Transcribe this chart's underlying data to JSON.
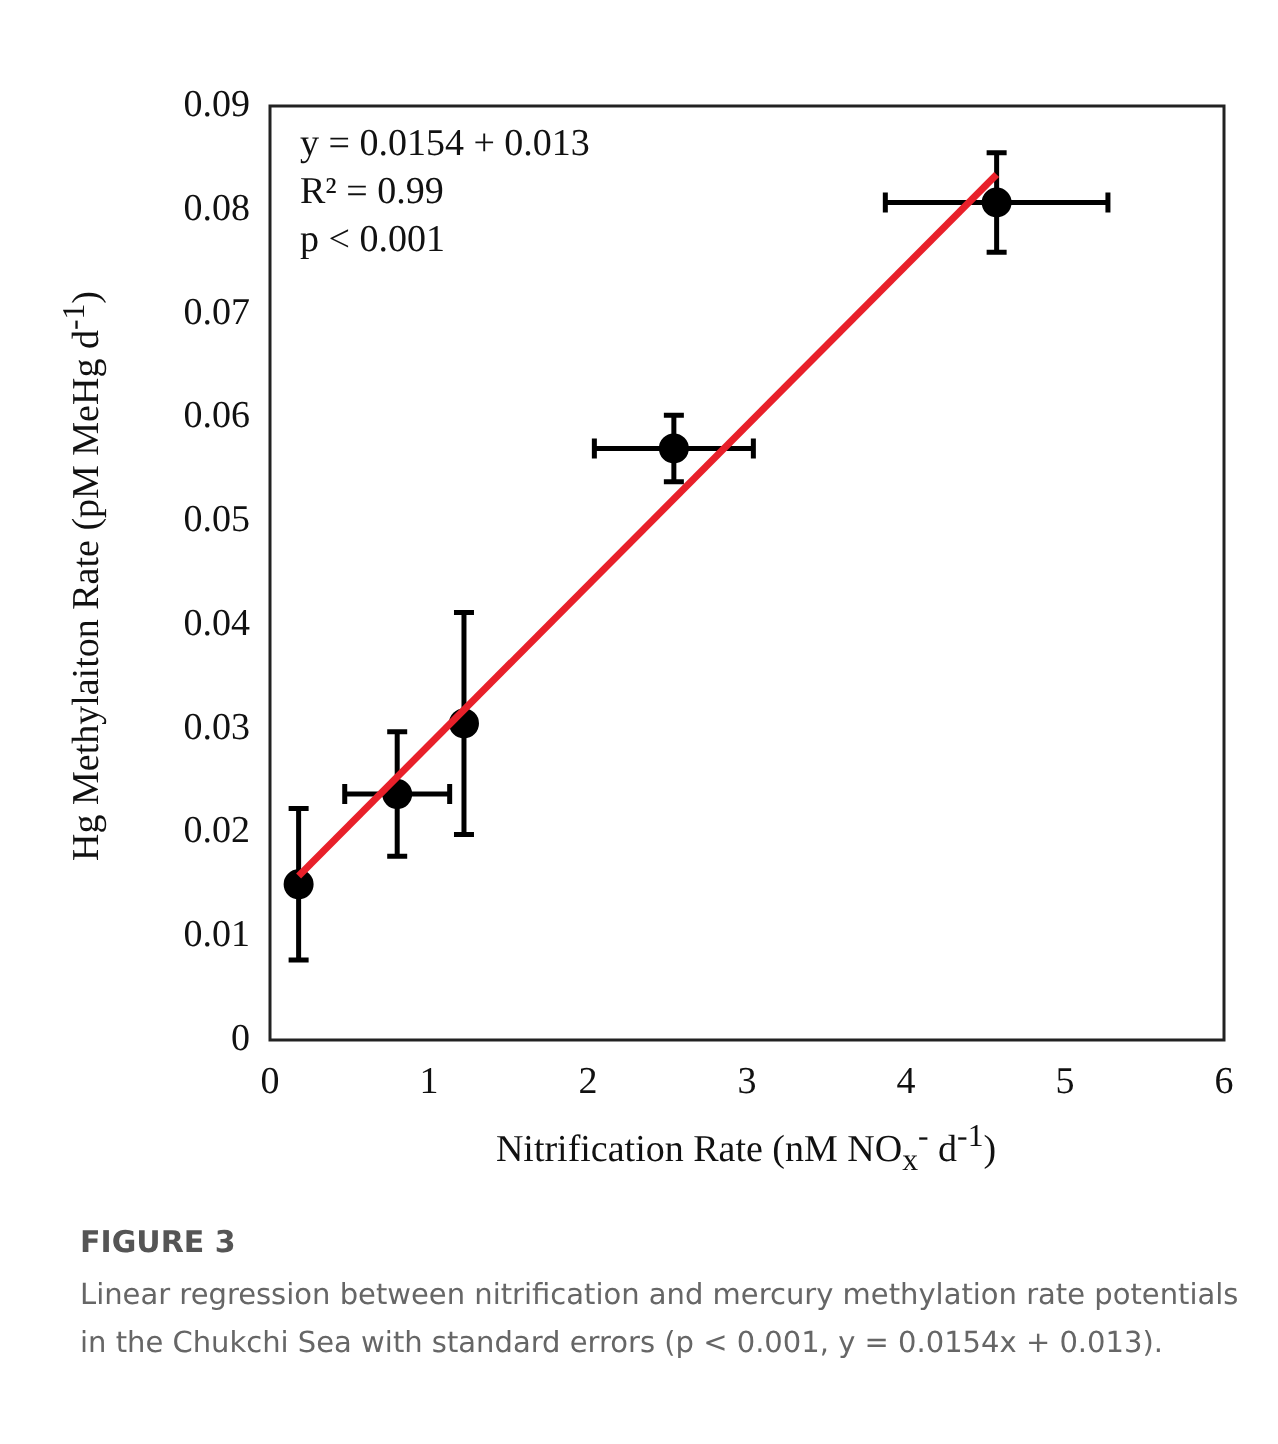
{
  "chart_data": {
    "type": "scatter",
    "title": "FIGURE 3",
    "xlabel": "Nitrification Rate (nM NO$_{x}$$^{-}$  d$^{-1}$)",
    "ylabel": "Hg Methylaiton Rate (pM MeHg d$^{-1}$)",
    "annotations": [
      "y = 0.0154 + 0.013",
      "R² = 0.99",
      "p < 0.001",
      "Linear regression between nitrification and mercury methylation rate potentials in the Chukchi Sea with standard errors (p < 0.001, y = 0.0154x + 0.013)."
    ],
    "series": [
      {
        "color": "#000000",
        "marker": "circle",
        "x": [
          0.18,
          0.8,
          1.22,
          2.54,
          4.57
        ],
        "values": [
          0.015,
          0.0237,
          0.0305,
          0.057,
          0.0807
        ],
        "errors": [
          0.0073,
          0.006,
          0.0107,
          0.0032,
          0.0048
        ],
        "xerrors": [
          null,
          0.33,
          null,
          0.5,
          0.7
        ]
      },
      {
        "type": "line",
        "color": "#e8202a",
        "marker": "none",
        "x": [
          0.18,
          4.57
        ],
        "values": [
          0.0158,
          0.0834
        ]
      }
    ],
    "xlim": [
      0,
      6
    ],
    "xticks": [
      0,
      1,
      2,
      3,
      4,
      5,
      6
    ],
    "ylim": [
      0,
      0.09
    ],
    "yticks": [
      0,
      0.01,
      0.02,
      0.03,
      0.04,
      0.05,
      0.06,
      0.07,
      0.08,
      0.09
    ],
    "grid": false,
    "legend": false
  }
}
